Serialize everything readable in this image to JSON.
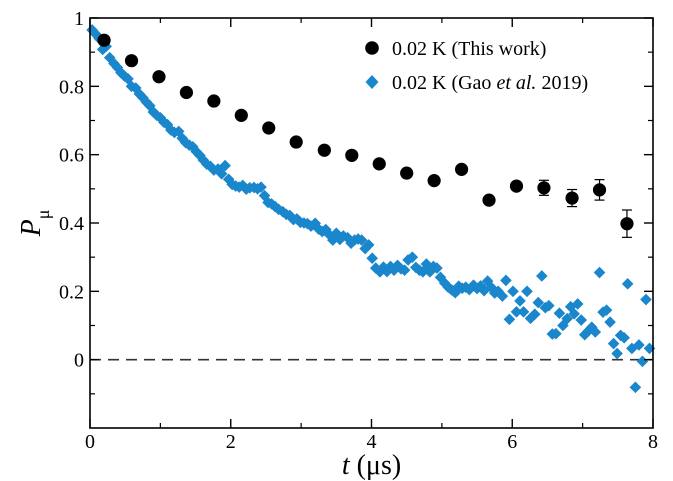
{
  "chart_data": {
    "type": "scatter",
    "xlabel": "t (μs)",
    "xlabel_var": "t",
    "xlabel_unit": " (μs)",
    "ylabel_var": "P",
    "ylabel_sub": "μ",
    "xlim": [
      0,
      8
    ],
    "ylim": [
      -0.2,
      1.0
    ],
    "x_ticks": [
      0,
      2,
      4,
      6,
      8
    ],
    "y_ticks": [
      0,
      0.2,
      0.4,
      0.6,
      0.8,
      1
    ],
    "y_tick_labels": [
      "0",
      "0.2",
      "0.4",
      "0.6",
      "0.8",
      "1"
    ],
    "grid": false,
    "legend_position": "top-right",
    "reference_line": {
      "y": 0,
      "style": "dashed"
    },
    "series": [
      {
        "name": "0.02 K (This work)",
        "name_parts": [
          "0.02 K (This work)"
        ],
        "marker": "circle",
        "color": "#000000",
        "x": [
          0.2,
          0.59,
          0.98,
          1.37,
          1.76,
          2.15,
          2.54,
          2.93,
          3.33,
          3.72,
          4.11,
          4.5,
          4.89,
          5.28,
          5.67,
          6.06,
          6.45,
          6.85,
          7.24,
          7.63
        ],
        "y": [
          0.935,
          0.875,
          0.828,
          0.782,
          0.757,
          0.715,
          0.678,
          0.637,
          0.613,
          0.598,
          0.573,
          0.546,
          0.524,
          0.557,
          0.467,
          0.508,
          0.503,
          0.473,
          0.497,
          0.398
        ],
        "yerr": [
          0.008,
          0.008,
          0.008,
          0.008,
          0.008,
          0.009,
          0.009,
          0.009,
          0.009,
          0.01,
          0.011,
          0.012,
          0.014,
          0.016,
          0.018,
          0.02,
          0.022,
          0.025,
          0.03,
          0.04
        ]
      },
      {
        "name": "0.02 K (Gao et al. 2019)",
        "name_parts": [
          "0.02 K (Gao ",
          "et al.",
          " 2019)"
        ],
        "marker": "diamond",
        "color": "#1a86cc",
        "x": [
          0.03,
          0.08,
          0.13,
          0.18,
          0.23,
          0.28,
          0.34,
          0.39,
          0.44,
          0.49,
          0.54,
          0.59,
          0.65,
          0.7,
          0.75,
          0.8,
          0.85,
          0.9,
          0.95,
          1.0,
          1.05,
          1.1,
          1.15,
          1.2,
          1.26,
          1.31,
          1.36,
          1.41,
          1.46,
          1.51,
          1.56,
          1.61,
          1.66,
          1.71,
          1.76,
          1.82,
          1.87,
          1.92,
          1.97,
          2.02,
          2.07,
          2.12,
          2.17,
          2.22,
          2.27,
          2.33,
          2.38,
          2.43,
          2.48,
          2.53,
          2.58,
          2.63,
          2.68,
          2.74,
          2.79,
          2.84,
          2.89,
          2.94,
          2.99,
          3.04,
          3.09,
          3.14,
          3.2,
          3.25,
          3.3,
          3.35,
          3.4,
          3.45,
          3.5,
          3.55,
          3.6,
          3.66,
          3.71,
          3.76,
          3.81,
          3.86,
          3.91,
          3.96,
          4.01,
          4.06,
          4.12,
          4.17,
          4.22,
          4.27,
          4.32,
          4.37,
          4.42,
          4.47,
          4.52,
          4.58,
          4.63,
          4.68,
          4.73,
          4.78,
          4.83,
          4.88,
          4.93,
          4.98,
          5.04,
          5.09,
          5.14,
          5.19,
          5.24,
          5.29,
          5.34,
          5.39,
          5.45,
          5.5,
          5.55,
          5.6,
          5.65,
          5.7,
          5.75,
          5.8,
          5.86,
          5.91,
          5.96,
          6.01,
          6.06,
          6.11,
          6.16,
          6.21,
          6.26,
          6.32,
          6.37,
          6.42,
          6.47,
          6.52,
          6.57,
          6.62,
          6.67,
          6.72,
          6.78,
          6.83,
          6.88,
          6.93,
          6.98,
          7.03,
          7.08,
          7.13,
          7.18,
          7.24,
          7.29,
          7.34,
          7.39,
          7.44,
          7.49,
          7.54,
          7.59,
          7.64,
          7.7,
          7.75,
          7.8,
          7.85,
          7.9,
          7.95
        ],
        "y": [
          0.965,
          0.953,
          0.94,
          0.908,
          0.917,
          0.884,
          0.867,
          0.855,
          0.84,
          0.83,
          0.822,
          0.8,
          0.795,
          0.778,
          0.767,
          0.754,
          0.743,
          0.725,
          0.715,
          0.708,
          0.695,
          0.688,
          0.672,
          0.665,
          0.668,
          0.648,
          0.635,
          0.628,
          0.623,
          0.609,
          0.598,
          0.584,
          0.572,
          0.566,
          0.555,
          0.558,
          0.544,
          0.568,
          0.528,
          0.513,
          0.508,
          0.505,
          0.51,
          0.499,
          0.503,
          0.504,
          0.5,
          0.505,
          0.48,
          0.46,
          0.456,
          0.448,
          0.44,
          0.433,
          0.425,
          0.422,
          0.41,
          0.412,
          0.402,
          0.4,
          0.398,
          0.391,
          0.399,
          0.382,
          0.375,
          0.381,
          0.366,
          0.35,
          0.37,
          0.352,
          0.362,
          0.357,
          0.341,
          0.35,
          0.353,
          0.35,
          0.325,
          0.336,
          0.297,
          0.268,
          0.257,
          0.271,
          0.258,
          0.273,
          0.262,
          0.276,
          0.266,
          0.262,
          0.292,
          0.3,
          0.27,
          0.262,
          0.257,
          0.28,
          0.257,
          0.273,
          0.268,
          0.241,
          0.224,
          0.212,
          0.204,
          0.196,
          0.215,
          0.209,
          0.212,
          0.205,
          0.218,
          0.208,
          0.216,
          0.202,
          0.23,
          0.212,
          0.195,
          0.2,
          0.186,
          0.232,
          0.118,
          0.2,
          0.14,
          0.172,
          0.14,
          0.2,
          0.121,
          0.133,
          0.167,
          0.245,
          0.152,
          0.158,
          0.075,
          0.076,
          0.136,
          0.1,
          0.12,
          0.155,
          0.134,
          0.163,
          0.116,
          0.073,
          0.084,
          0.095,
          0.081,
          0.255,
          0.139,
          0.145,
          0.11,
          0.047,
          0.018,
          0.071,
          0.064,
          0.222,
          0.033,
          -0.081,
          0.043,
          -0.005,
          0.176,
          0.033
        ]
      }
    ]
  }
}
